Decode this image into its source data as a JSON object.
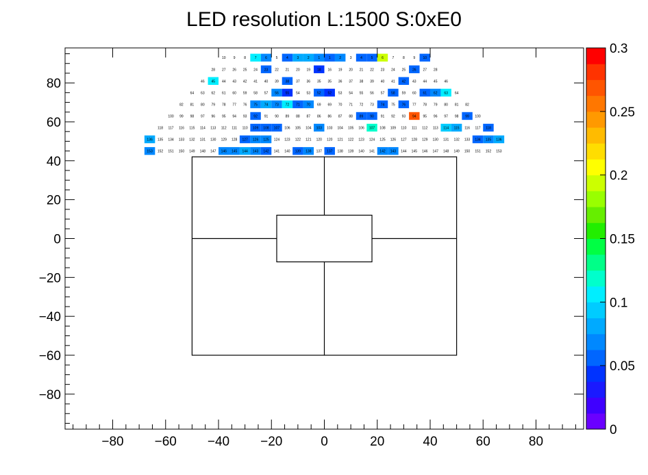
{
  "chart_data": {
    "type": "heatmap",
    "title": "LED resolution L:1500 S:0xE0",
    "xlabel": "",
    "ylabel": "",
    "xlim": [
      -98,
      98
    ],
    "ylim": [
      -98,
      98
    ],
    "x_ticks": [
      -80,
      -60,
      -40,
      -20,
      0,
      20,
      40,
      60,
      80
    ],
    "y_ticks": [
      -80,
      -60,
      -40,
      -20,
      0,
      20,
      40,
      60,
      80
    ],
    "colorbar": {
      "range": [
        0,
        0.3
      ],
      "ticks": [
        0,
        0.05,
        0.1,
        0.15,
        0.2,
        0.25,
        0.3
      ],
      "tick_labels": [
        "0",
        "0.05",
        "0.1",
        "0.15",
        "0.2",
        "0.25",
        "0.3"
      ],
      "palette": [
        "#6a00ff",
        "#3f00ff",
        "#1a1aff",
        "#0033ff",
        "#0066ff",
        "#0088ff",
        "#00aaff",
        "#00ccff",
        "#00eeff",
        "#00ffcc",
        "#00ff88",
        "#00ff44",
        "#22ee00",
        "#66ee00",
        "#99ff00",
        "#ccff00",
        "#ffff00",
        "#ffdd00",
        "#ffbb00",
        "#ff9900",
        "#ff7700",
        "#ff5500",
        "#ff3300",
        "#ff0000"
      ]
    },
    "outer_cells": {
      "cell_size": 4.0,
      "rows": [
        {
          "y": 93,
          "labels": [
            "10",
            "9",
            "8",
            "7",
            "6",
            "5",
            "4",
            "3",
            "2",
            "1",
            "1",
            "2",
            "3",
            "4",
            "5",
            "6",
            "7",
            "8",
            "9",
            "10"
          ],
          "values": [
            0,
            0,
            0,
            0.11,
            0.07,
            0,
            0.06,
            0.08,
            0.08,
            0.07,
            0.06,
            0.07,
            0,
            0.06,
            0.06,
            0.19,
            0,
            0,
            0,
            0.05
          ]
        },
        {
          "y": 87,
          "labels": [
            "28",
            "27",
            "26",
            "25",
            "24",
            "23",
            "22",
            "21",
            "20",
            "19",
            "18",
            "16",
            "19",
            "20",
            "21",
            "22",
            "23",
            "24",
            "25",
            "26",
            "27",
            "28"
          ],
          "values": [
            0,
            0,
            0,
            0,
            0,
            0.05,
            0,
            0,
            0,
            0,
            0.04,
            0,
            0,
            0,
            0,
            0,
            0,
            0,
            0,
            0.05,
            0,
            0
          ]
        },
        {
          "y": 81,
          "labels": [
            "46",
            "45",
            "44",
            "43",
            "42",
            "41",
            "40",
            "39",
            "38",
            "37",
            "36",
            "35",
            "35",
            "36",
            "37",
            "38",
            "39",
            "40",
            "41",
            "42",
            "43",
            "44",
            "45",
            "46"
          ],
          "values": [
            0,
            0.1,
            0,
            0,
            0,
            0,
            0,
            0,
            0.05,
            0,
            0,
            0,
            0,
            0,
            0,
            0,
            0,
            0,
            0,
            0.05,
            0,
            0,
            0,
            0
          ]
        },
        {
          "y": 75,
          "labels": [
            "64",
            "63",
            "62",
            "61",
            "60",
            "59",
            "58",
            "57",
            "56",
            "55",
            "54",
            "53",
            "52",
            "52",
            "53",
            "54",
            "55",
            "56",
            "57",
            "58",
            "59",
            "60",
            "61",
            "62",
            "63",
            "64"
          ],
          "values": [
            0,
            0,
            0,
            0,
            0,
            0,
            0,
            0,
            0.07,
            0.04,
            0,
            0,
            0.06,
            0.04,
            0,
            0,
            0,
            0,
            0,
            0.06,
            0,
            0,
            0.05,
            0.07,
            0.1,
            0
          ]
        },
        {
          "y": 69,
          "labels": [
            "82",
            "81",
            "80",
            "79",
            "78",
            "77",
            "76",
            "75",
            "74",
            "73",
            "72",
            "71",
            "70",
            "69",
            "69",
            "70",
            "71",
            "72",
            "73",
            "74",
            "75",
            "76",
            "77",
            "78",
            "79",
            "80",
            "81",
            "82"
          ],
          "values": [
            0,
            0,
            0,
            0,
            0,
            0,
            0,
            0.07,
            0.08,
            0.07,
            0.11,
            0.06,
            0.07,
            0,
            0,
            0,
            0,
            0,
            0,
            0.06,
            0,
            0.05,
            0,
            0,
            0,
            0,
            0,
            0
          ]
        },
        {
          "y": 63,
          "labels": [
            "100",
            "99",
            "98",
            "97",
            "96",
            "95",
            "94",
            "93",
            "92",
            "91",
            "90",
            "89",
            "88",
            "87",
            "86",
            "86",
            "87",
            "88",
            "89",
            "90",
            "91",
            "92",
            "93",
            "94",
            "95",
            "96",
            "97",
            "98",
            "99",
            "100"
          ],
          "values": [
            0,
            0,
            0,
            0,
            0,
            0,
            0,
            0,
            0.06,
            0,
            0,
            0,
            0,
            0,
            0,
            0,
            0,
            0,
            0.06,
            0.05,
            0,
            0,
            0,
            0.27,
            0,
            0,
            0,
            0,
            0.06,
            0
          ]
        },
        {
          "y": 57,
          "labels": [
            "118",
            "117",
            "116",
            "115",
            "114",
            "113",
            "112",
            "111",
            "110",
            "109",
            "108",
            "107",
            "106",
            "105",
            "104",
            "103",
            "103",
            "104",
            "105",
            "106",
            "107",
            "108",
            "109",
            "110",
            "111",
            "112",
            "113",
            "114",
            "115",
            "116",
            "117",
            "118"
          ],
          "values": [
            0,
            0,
            0,
            0,
            0,
            0,
            0,
            0,
            0,
            0.06,
            0.06,
            0.05,
            0,
            0,
            0,
            0.07,
            0,
            0,
            0,
            0,
            0.12,
            0,
            0,
            0,
            0,
            0,
            0,
            0.09,
            0.08,
            0,
            0,
            0.06
          ]
        },
        {
          "y": 51,
          "labels": [
            "136",
            "135",
            "134",
            "133",
            "132",
            "131",
            "130",
            "129",
            "128",
            "127",
            "126",
            "125",
            "124",
            "123",
            "122",
            "121",
            "120",
            "120",
            "121",
            "122",
            "123",
            "124",
            "125",
            "126",
            "127",
            "128",
            "129",
            "130",
            "131",
            "132",
            "133",
            "134",
            "135",
            "136"
          ],
          "values": [
            0.08,
            0,
            0,
            0,
            0,
            0,
            0,
            0,
            0,
            0.06,
            0.07,
            0.07,
            0,
            0,
            0,
            0,
            0,
            0,
            0,
            0,
            0,
            0,
            0,
            0,
            0,
            0,
            0,
            0,
            0,
            0,
            0,
            0.06,
            0.07,
            0.08
          ]
        },
        {
          "y": 45,
          "labels": [
            "153",
            "152",
            "151",
            "150",
            "149",
            "148",
            "147",
            "146",
            "145",
            "144",
            "143",
            "142",
            "141",
            "140",
            "139",
            "138",
            "137",
            "137",
            "138",
            "139",
            "140",
            "141",
            "142",
            "143",
            "144",
            "145",
            "146",
            "147",
            "148",
            "149",
            "150",
            "151",
            "152",
            "153"
          ],
          "values": [
            0.07,
            0,
            0,
            0,
            0,
            0,
            0,
            0.07,
            0.07,
            0.08,
            0.07,
            0.06,
            0,
            0,
            0.05,
            0.07,
            0,
            0.06,
            0,
            0,
            0,
            0,
            0.07,
            0.07,
            0,
            0,
            0,
            0,
            0,
            0,
            0,
            0,
            0,
            0
          ]
        }
      ]
    }
  }
}
